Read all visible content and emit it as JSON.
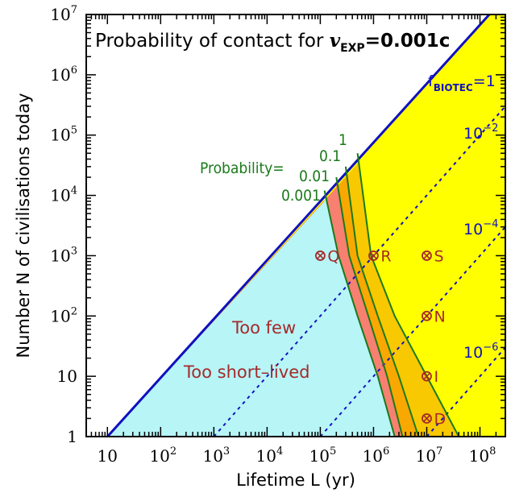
{
  "chart_data": {
    "type": "line",
    "title_prefix": "Probability of contact for",
    "title_var": "v",
    "title_sub": "EXP",
    "title_value": "=0.001c",
    "xlabel": "Lifetime L (yr)",
    "ylabel": "Number N of civilisations today",
    "x_scale": "log",
    "y_scale": "log",
    "xlim": [
      4,
      300000000
    ],
    "ylim": [
      1,
      10000000
    ],
    "x_ticks": [
      {
        "value": 10,
        "label": "10"
      },
      {
        "value": 100,
        "label": "10",
        "sup": "2"
      },
      {
        "value": 1000,
        "label": "10",
        "sup": "3"
      },
      {
        "value": 10000,
        "label": "10",
        "sup": "4"
      },
      {
        "value": 100000,
        "label": "10",
        "sup": "5"
      },
      {
        "value": 1000000,
        "label": "10",
        "sup": "6"
      },
      {
        "value": 10000000,
        "label": "10",
        "sup": "7"
      },
      {
        "value": 100000000,
        "label": "10",
        "sup": "8"
      }
    ],
    "y_ticks": [
      {
        "value": 1,
        "label": "1"
      },
      {
        "value": 10,
        "label": "10"
      },
      {
        "value": 100,
        "label": "10",
        "sup": "2"
      },
      {
        "value": 1000,
        "label": "10",
        "sup": "3"
      },
      {
        "value": 10000,
        "label": "10",
        "sup": "4"
      },
      {
        "value": 100000,
        "label": "10",
        "sup": "5"
      },
      {
        "value": 1000000,
        "label": "10",
        "sup": "6"
      },
      {
        "value": 10000000,
        "label": "10",
        "sup": "7"
      }
    ],
    "fbiotec_lines": [
      {
        "value": 1,
        "label_main": "f",
        "label_sub": "BIOTEC",
        "label_suffix": "=1",
        "style": "solid",
        "points": [
          [
            10,
            1
          ],
          [
            150000000,
            10000000
          ]
        ]
      },
      {
        "value": 0.01,
        "label_main": "10",
        "label_sup": "−2",
        "style": "dashed",
        "points": [
          [
            1000,
            1
          ],
          [
            300000000,
            300000
          ]
        ]
      },
      {
        "value": 0.0001,
        "label_main": "10",
        "label_sup": "−4",
        "style": "dashed",
        "points": [
          [
            100000,
            1
          ],
          [
            300000000,
            3000
          ]
        ]
      },
      {
        "value": 1e-06,
        "label_main": "10",
        "label_sup": "−6",
        "style": "dashed",
        "points": [
          [
            10000000,
            1
          ],
          [
            300000000,
            30
          ]
        ]
      }
    ],
    "probability_contours": [
      {
        "label": "0.001",
        "points": [
          [
            120000,
            12000
          ],
          [
            220000,
            1000
          ],
          [
            500000,
            100
          ],
          [
            1200000,
            10
          ],
          [
            2500000,
            1
          ]
        ]
      },
      {
        "label": "0.01",
        "points": [
          [
            200000,
            20000
          ],
          [
            350000,
            1000
          ],
          [
            800000,
            100
          ],
          [
            1800000,
            10
          ],
          [
            3500000,
            1
          ]
        ]
      },
      {
        "label": "0.1",
        "points": [
          [
            300000,
            30000
          ],
          [
            500000,
            1000
          ],
          [
            1200000,
            100
          ],
          [
            3000000,
            10
          ],
          [
            7000000,
            1
          ]
        ]
      },
      {
        "label": "1",
        "points": [
          [
            500000,
            50000
          ],
          [
            900000,
            1000
          ],
          [
            2500000,
            100
          ],
          [
            10000000,
            10
          ],
          [
            40000000,
            1
          ]
        ]
      }
    ],
    "probability_prefix": "Probability=",
    "points": [
      {
        "label": "Q",
        "x": 100000,
        "y": 1000
      },
      {
        "label": "R",
        "x": 1000000,
        "y": 1000
      },
      {
        "label": "S",
        "x": 10000000,
        "y": 1000
      },
      {
        "label": "N",
        "x": 10000000,
        "y": 100
      },
      {
        "label": "I",
        "x": 10000000,
        "y": 10
      },
      {
        "label": "D",
        "x": 10000000,
        "y": 2
      }
    ],
    "region_labels": [
      "Too few",
      "Too short–lived"
    ],
    "colors": {
      "cyan": "#b7f5f7",
      "salmon": "#f78070",
      "orange": "#f8a800",
      "gold": "#f8c800",
      "yellow": "#ffff00",
      "contour": "#1a7a1a",
      "line": "#1010c0",
      "marker": "#a52a2a"
    }
  }
}
